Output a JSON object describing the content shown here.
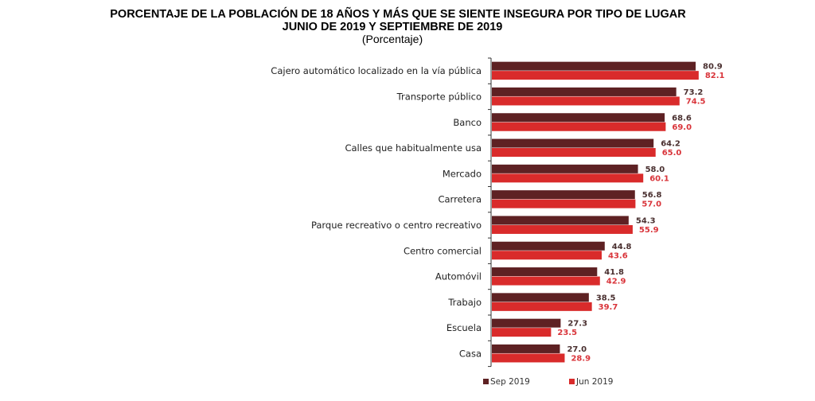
{
  "chart_data": {
    "type": "bar",
    "orientation": "horizontal",
    "title": "PORCENTAJE DE LA POBLACIÓN DE 18 AÑOS Y MÁS QUE SE SIENTE INSEGURA POR TIPO DE LUGAR",
    "subtitle": "JUNIO DE 2019 Y SEPTIEMBRE DE 2019",
    "unit_label": "(Porcentaje)",
    "xlabel": "",
    "ylabel": "",
    "xlim": [
      0,
      100
    ],
    "grid": false,
    "legend_position": "bottom",
    "categories": [
      "Cajero automático localizado en la vía pública",
      "Transporte público",
      "Banco",
      "Calles que habitualmente usa",
      "Mercado",
      "Carretera",
      "Parque recreativo o centro recreativo",
      "Centro comercial",
      "Automóvil",
      "Trabajo",
      "Escuela",
      "Casa"
    ],
    "series": [
      {
        "name": "Sep 2019",
        "color": "#5e2123",
        "values": [
          80.9,
          73.2,
          68.6,
          64.2,
          58.0,
          56.8,
          54.3,
          44.8,
          41.8,
          38.5,
          27.3,
          27.0
        ]
      },
      {
        "name": "Jun 2019",
        "color": "#d92b2b",
        "values": [
          82.1,
          74.5,
          69.0,
          65.0,
          60.1,
          57.0,
          55.9,
          43.6,
          42.9,
          39.7,
          23.5,
          28.9
        ]
      }
    ]
  }
}
